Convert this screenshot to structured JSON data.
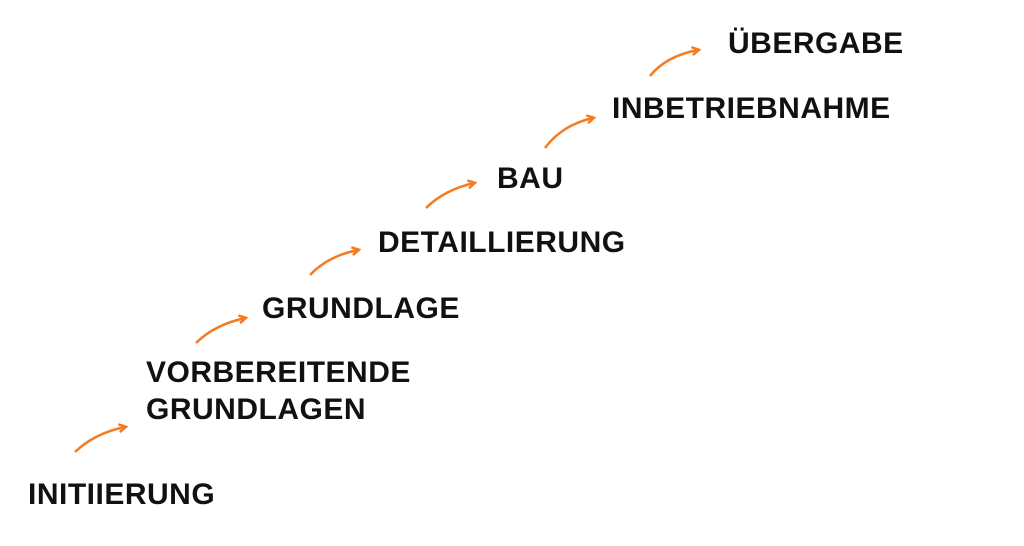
{
  "arrow_color": "#f47b20",
  "steps": [
    {
      "label": "Initiierung"
    },
    {
      "label": "Vorbereitende"
    },
    {
      "label": "Grundlagen"
    },
    {
      "label": "Grundlage"
    },
    {
      "label": "Detaillierung"
    },
    {
      "label": "Bau"
    },
    {
      "label": "Inbetriebnahme"
    },
    {
      "label": "Übergabe"
    }
  ]
}
